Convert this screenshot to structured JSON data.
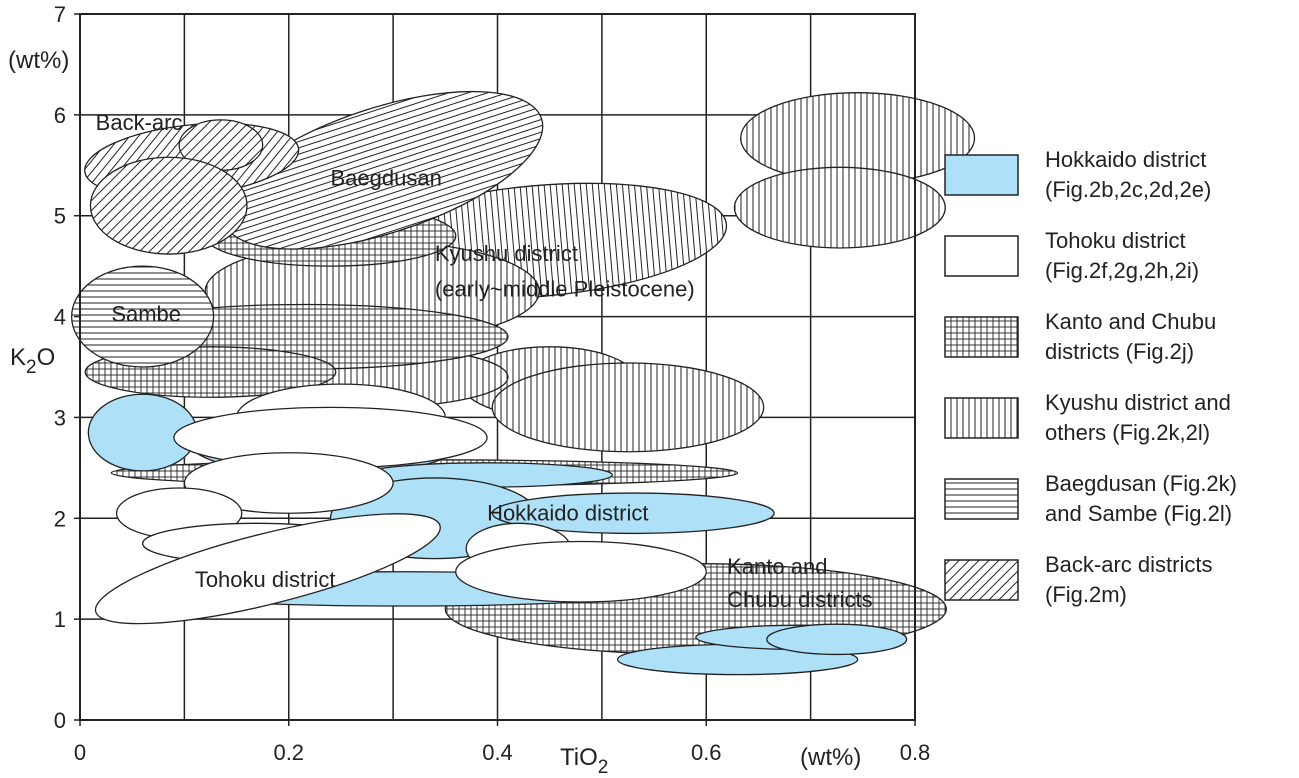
{
  "chart_data": {
    "type": "scatter",
    "title": "",
    "xlabel": "TiO",
    "xlabel_sub": "2",
    "ylabel": "K",
    "ylabel_sub": "2",
    "ylabel_tail": "O",
    "x_unit": "(wt%)",
    "y_unit": "(wt%)",
    "xlim": [
      0,
      0.8
    ],
    "ylim": [
      0,
      7
    ],
    "x_ticks": [
      "0",
      "0.2",
      "0.4",
      "0.6",
      "0.8"
    ],
    "y_ticks": [
      "0",
      "1",
      "2",
      "3",
      "4",
      "5",
      "6",
      "7"
    ],
    "grid": true,
    "legend_placement": "right",
    "series": [
      {
        "key": "kyushu",
        "name": "Kyushu district and others (Fig.2k,2l)",
        "pattern": "vertical",
        "regions": [
          {
            "cx": 0.745,
            "cy": 5.77,
            "rx": 0.112,
            "ry": 0.45,
            "rot": 0
          },
          {
            "cx": 0.728,
            "cy": 5.08,
            "rx": 0.101,
            "ry": 0.4,
            "rot": 0
          },
          {
            "cx": 0.44,
            "cy": 4.75,
            "rx": 0.18,
            "ry": 0.55,
            "rot": -5
          },
          {
            "cx": 0.28,
            "cy": 4.25,
            "rx": 0.16,
            "ry": 0.5,
            "rot": 0
          },
          {
            "cx": 0.45,
            "cy": 3.35,
            "rx": 0.085,
            "ry": 0.35,
            "rot": 0
          },
          {
            "cx": 0.525,
            "cy": 3.1,
            "rx": 0.13,
            "ry": 0.44,
            "rot": 0
          },
          {
            "cx": 0.28,
            "cy": 3.4,
            "rx": 0.13,
            "ry": 0.3,
            "rot": 0
          }
        ]
      },
      {
        "key": "kanto",
        "name": "Kanto and Chubu districts (Fig.2j)",
        "pattern": "grid",
        "regions": [
          {
            "cx": 0.215,
            "cy": 3.8,
            "rx": 0.195,
            "ry": 0.32,
            "rot": 0
          },
          {
            "cx": 0.125,
            "cy": 3.45,
            "rx": 0.12,
            "ry": 0.25,
            "rot": 0
          },
          {
            "cx": 0.33,
            "cy": 2.45,
            "rx": 0.3,
            "ry": 0.13,
            "rot": 0
          },
          {
            "cx": 0.59,
            "cy": 1.1,
            "rx": 0.24,
            "ry": 0.45,
            "rot": 0
          },
          {
            "cx": 0.24,
            "cy": 4.8,
            "rx": 0.12,
            "ry": 0.3,
            "rot": 0
          }
        ]
      },
      {
        "key": "baegdusan",
        "name": "Baegdusan (Fig.2k) and Sambe (Fig.2l)",
        "pattern": "horizontal",
        "regions": [
          {
            "cx": 0.29,
            "cy": 5.45,
            "rx": 0.16,
            "ry": 0.62,
            "rot": -18
          },
          {
            "cx": 0.06,
            "cy": 4.0,
            "rx": 0.068,
            "ry": 0.5,
            "rot": 0
          }
        ]
      },
      {
        "key": "backarc",
        "name": "Back-arc districts (Fig.2m)",
        "pattern": "diagonal",
        "regions": [
          {
            "cx": 0.107,
            "cy": 5.55,
            "rx": 0.103,
            "ry": 0.35,
            "rot": -6
          },
          {
            "cx": 0.135,
            "cy": 5.7,
            "rx": 0.04,
            "ry": 0.25,
            "rot": 0
          },
          {
            "cx": 0.085,
            "cy": 5.1,
            "rx": 0.075,
            "ry": 0.48,
            "rot": 0
          }
        ]
      },
      {
        "key": "hokkaido",
        "name": "Hokkaido district (Fig.2b,2c,2d,2e)",
        "pattern": "fill",
        "regions": [
          {
            "cx": 0.06,
            "cy": 2.85,
            "rx": 0.052,
            "ry": 0.38,
            "rot": 0
          },
          {
            "cx": 0.235,
            "cy": 2.75,
            "rx": 0.13,
            "ry": 0.32,
            "rot": 0
          },
          {
            "cx": 0.39,
            "cy": 2.43,
            "rx": 0.12,
            "ry": 0.12,
            "rot": 0
          },
          {
            "cx": 0.34,
            "cy": 2.0,
            "rx": 0.1,
            "ry": 0.4,
            "rot": 0
          },
          {
            "cx": 0.53,
            "cy": 2.05,
            "rx": 0.135,
            "ry": 0.2,
            "rot": 0
          },
          {
            "cx": 0.31,
            "cy": 1.3,
            "rx": 0.26,
            "ry": 0.17,
            "rot": 0
          },
          {
            "cx": 0.63,
            "cy": 0.6,
            "rx": 0.115,
            "ry": 0.15,
            "rot": 0
          },
          {
            "cx": 0.69,
            "cy": 0.82,
            "rx": 0.1,
            "ry": 0.12,
            "rot": 0
          },
          {
            "cx": 0.725,
            "cy": 0.8,
            "rx": 0.067,
            "ry": 0.15,
            "rot": 0
          }
        ]
      },
      {
        "key": "tohoku",
        "name": "Tohoku district (Fig.2f,2g,2h,2i)",
        "pattern": "none",
        "regions": [
          {
            "cx": 0.25,
            "cy": 3.0,
            "rx": 0.1,
            "ry": 0.33,
            "rot": 0
          },
          {
            "cx": 0.24,
            "cy": 2.8,
            "rx": 0.15,
            "ry": 0.3,
            "rot": 0
          },
          {
            "cx": 0.2,
            "cy": 2.35,
            "rx": 0.1,
            "ry": 0.3,
            "rot": 0
          },
          {
            "cx": 0.095,
            "cy": 2.05,
            "rx": 0.06,
            "ry": 0.25,
            "rot": 0
          },
          {
            "cx": 0.17,
            "cy": 1.75,
            "rx": 0.11,
            "ry": 0.2,
            "rot": 0
          },
          {
            "cx": 0.42,
            "cy": 1.7,
            "rx": 0.05,
            "ry": 0.25,
            "rot": 0
          },
          {
            "cx": 0.48,
            "cy": 1.47,
            "rx": 0.12,
            "ry": 0.3,
            "rot": 0
          },
          {
            "cx": 0.18,
            "cy": 1.5,
            "rx": 0.17,
            "ry": 0.35,
            "rot": -14
          }
        ]
      }
    ],
    "annotations": [
      {
        "text": "Back-arc",
        "x": 0.015,
        "y": 5.85
      },
      {
        "text": "Baegdusan",
        "x": 0.24,
        "y": 5.3
      },
      {
        "text": "Kyushu district",
        "x": 0.34,
        "y": 4.55
      },
      {
        "text": "(early~middle Pleistocene)",
        "x": 0.34,
        "y": 4.2
      },
      {
        "text": "Sambe",
        "x": 0.03,
        "y": 3.95
      },
      {
        "text": "Hokkaido district",
        "x": 0.39,
        "y": 1.98
      },
      {
        "text": "Tohoku district",
        "x": 0.11,
        "y": 1.32
      },
      {
        "text": "Kanto and",
        "x": 0.62,
        "y": 1.45
      },
      {
        "text": "Chubu districts",
        "x": 0.62,
        "y": 1.12
      }
    ],
    "legend": [
      {
        "key": "hokkaido",
        "lines": [
          "Hokkaido district",
          "(Fig.2b,2c,2d,2e)"
        ]
      },
      {
        "key": "tohoku",
        "lines": [
          "Tohoku district",
          "(Fig.2f,2g,2h,2i)"
        ]
      },
      {
        "key": "kanto",
        "lines": [
          "Kanto and Chubu",
          "districts (Fig.2j)"
        ]
      },
      {
        "key": "kyushu",
        "lines": [
          "Kyushu district and",
          "others (Fig.2k,2l)"
        ]
      },
      {
        "key": "baegdusan",
        "lines": [
          "Baegdusan (Fig.2k)",
          "and Sambe (Fig.2l)"
        ]
      },
      {
        "key": "backarc",
        "lines": [
          "Back-arc districts",
          "(Fig.2m)"
        ]
      }
    ]
  },
  "colors": {
    "hokkaido_fill": "#aee0f8",
    "stroke": "#222222",
    "background": "#ffffff"
  }
}
